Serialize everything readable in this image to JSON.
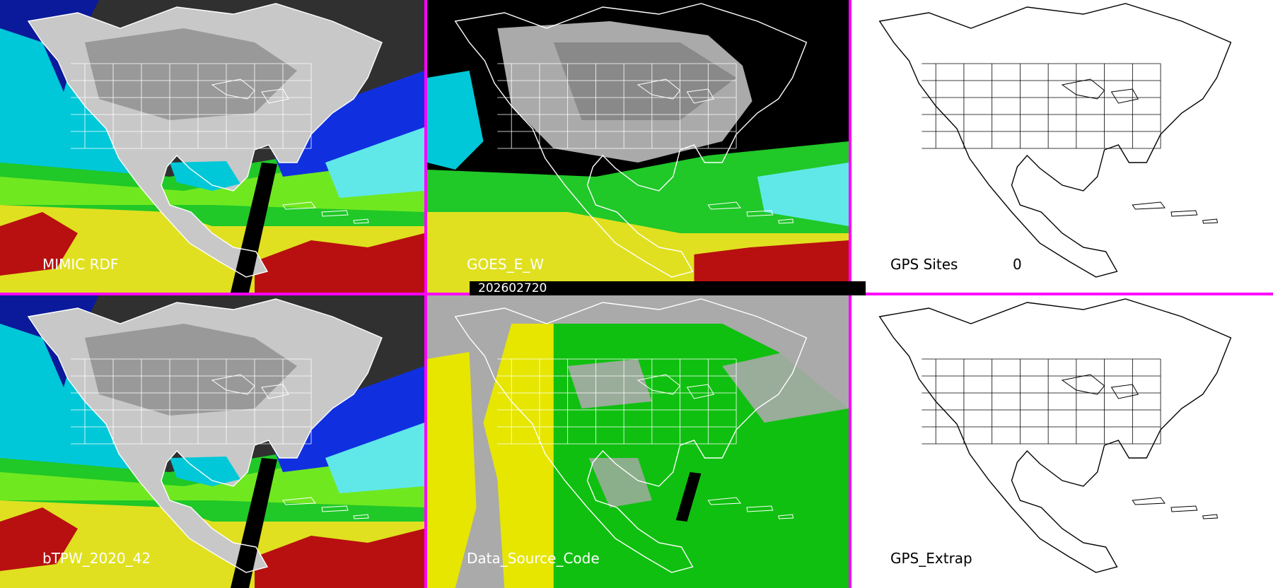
{
  "panels": [
    {
      "id": "mimic",
      "label": "MIMIC RDF",
      "colormap": "tpw"
    },
    {
      "id": "goes",
      "label": "GOES_E_W",
      "colormap": "tpw_masked"
    },
    {
      "id": "gps_sites",
      "label": "GPS Sites",
      "count": "0",
      "colormap": "blank"
    },
    {
      "id": "btpw",
      "label": "bTPW_2020_42",
      "colormap": "tpw"
    },
    {
      "id": "source",
      "label": "Data_Source_Code",
      "colormap": "source"
    },
    {
      "id": "gps_extrap",
      "label": "GPS_Extrap",
      "colormap": "blank"
    }
  ],
  "timestamp": "202602720",
  "colors": {
    "separator": "#ff00ff",
    "tpw_scale": [
      "#303030",
      "#7a7a7a",
      "#c8c8c8",
      "#0a1a9a",
      "#1030e0",
      "#00c8d8",
      "#60e8e8",
      "#20c828",
      "#70e820",
      "#e0e020",
      "#c8a010",
      "#b81010"
    ],
    "source_gray": "#aaaaaa",
    "source_green": "#10c010",
    "source_yellow": "#e6e600"
  }
}
